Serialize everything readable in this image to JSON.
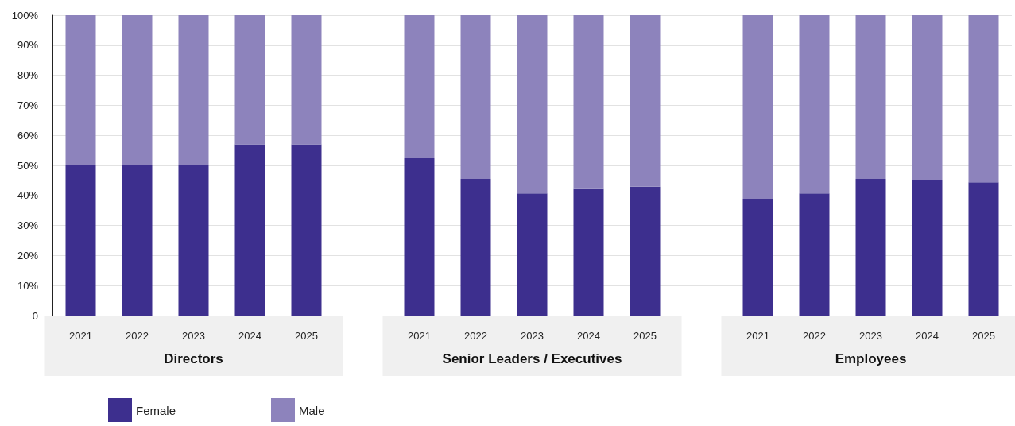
{
  "chart_data": {
    "type": "bar",
    "stacked": true,
    "categories": [
      "2021",
      "2022",
      "2023",
      "2024",
      "2025",
      null,
      "2021",
      "2022",
      "2023",
      "2024",
      "2025",
      null,
      "2021",
      "2022",
      "2023",
      "2024",
      "2025"
    ],
    "series": [
      {
        "name": "Female",
        "color": "#3d2f8e",
        "values": [
          50,
          50,
          50,
          57,
          57,
          null,
          52.4,
          45.5,
          40.7,
          42.1,
          42.9,
          null,
          38.9,
          40.7,
          45.5,
          45.2,
          44.4
        ]
      },
      {
        "name": "Male",
        "color": "#8d83bc",
        "values": [
          50,
          50,
          50,
          43,
          43,
          null,
          47.6,
          54.5,
          59.3,
          57.9,
          57.1,
          null,
          61.1,
          59.3,
          54.5,
          54.8,
          55.6
        ]
      }
    ],
    "ylim": [
      0,
      100
    ],
    "yticks": [
      0,
      {
        "value": 10,
        "label": "10%"
      },
      {
        "value": 20,
        "label": "20%"
      },
      {
        "value": 30,
        "label": "30%"
      },
      {
        "value": 40,
        "label": "40%"
      },
      {
        "value": 50,
        "label": "50%"
      },
      {
        "value": 60,
        "label": "60%"
      },
      {
        "value": 70,
        "label": "70%"
      },
      {
        "value": 80,
        "label": "80%"
      },
      {
        "value": 90,
        "label": "90%"
      },
      {
        "value": 100,
        "label": "100%"
      }
    ],
    "grid": "y",
    "legend": "bottom left",
    "annotations": [
      "Directors",
      "Senior Leaders / Executives",
      "Employees"
    ]
  }
}
